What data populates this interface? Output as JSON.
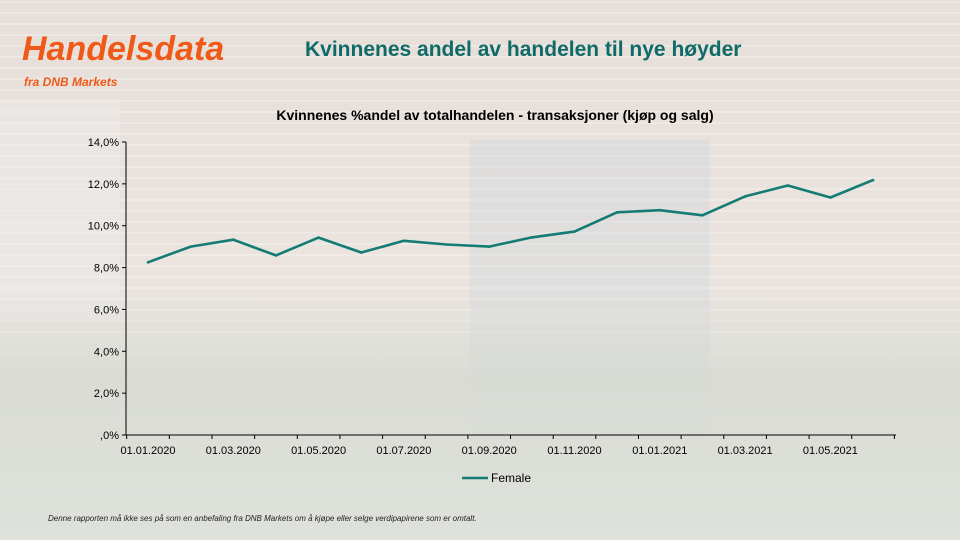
{
  "brand": {
    "name": "Handelsdata",
    "subtitle": "fra DNB Markets",
    "color": "#f05a19"
  },
  "heading": "Kvinnenes andel av handelen til nye høyder",
  "disclaimer": "Denne rapporten må ikke ses på som en anbefaling fra DNB Markets om å kjøpe eller selge verdipapirene som er omtalt.",
  "chart_data": {
    "type": "line",
    "title": "Kvinnenes %andel av totalhandelen - transaksjoner (kjøp og salg)",
    "xlabel": "",
    "ylabel": "",
    "x_tick_labels": [
      "01.01.2020",
      "01.03.2020",
      "01.05.2020",
      "01.07.2020",
      "01.09.2020",
      "01.11.2020",
      "01.01.2021",
      "01.03.2021",
      "01.05.2021"
    ],
    "y_tick_labels": [
      ",0%",
      "2,0%",
      "4,0%",
      "6,0%",
      "8,0%",
      "10,0%",
      "12,0%",
      "14,0%"
    ],
    "ylim": [
      0,
      14
    ],
    "x": [
      "2020-01",
      "2020-02",
      "2020-03",
      "2020-04",
      "2020-05",
      "2020-06",
      "2020-07",
      "2020-08",
      "2020-09",
      "2020-10",
      "2020-11",
      "2020-12",
      "2021-01",
      "2021-02",
      "2021-03",
      "2021-04",
      "2021-05",
      "2021-06"
    ],
    "series": [
      {
        "name": "Female",
        "color": "#157b75",
        "values": [
          8.25,
          9.0,
          9.33,
          8.58,
          9.43,
          8.72,
          9.28,
          9.1,
          9.0,
          9.44,
          9.72,
          10.64,
          10.74,
          10.5,
          11.4,
          11.92,
          11.35,
          12.18
        ]
      }
    ],
    "grid": false,
    "legend_position": "bottom-center"
  }
}
